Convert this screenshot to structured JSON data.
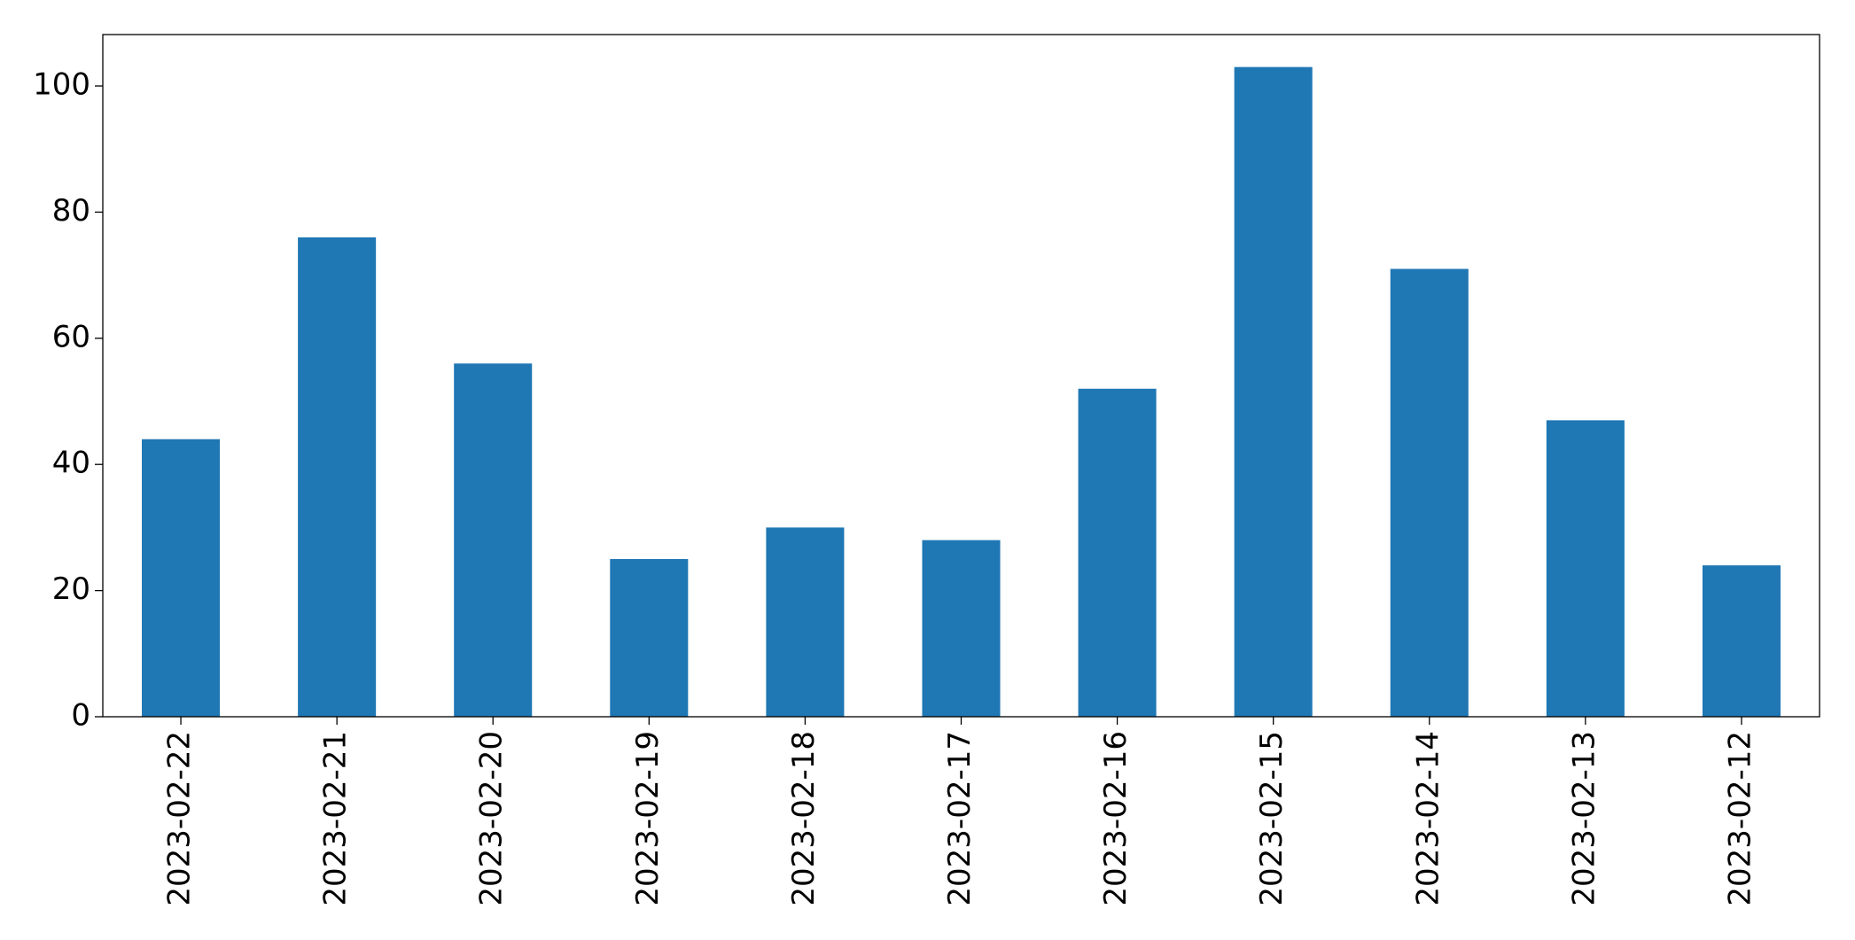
{
  "chart_data": {
    "type": "bar",
    "categories": [
      "2023-02-22",
      "2023-02-21",
      "2023-02-20",
      "2023-02-19",
      "2023-02-18",
      "2023-02-17",
      "2023-02-16",
      "2023-02-15",
      "2023-02-14",
      "2023-02-13",
      "2023-02-12"
    ],
    "values": [
      44,
      76,
      56,
      25,
      30,
      28,
      52,
      103,
      71,
      47,
      24
    ],
    "color": "#1f77b4",
    "ylim": [
      0,
      108.15
    ],
    "yticks": [
      0,
      20,
      40,
      60,
      80,
      100
    ],
    "grid": false
  }
}
